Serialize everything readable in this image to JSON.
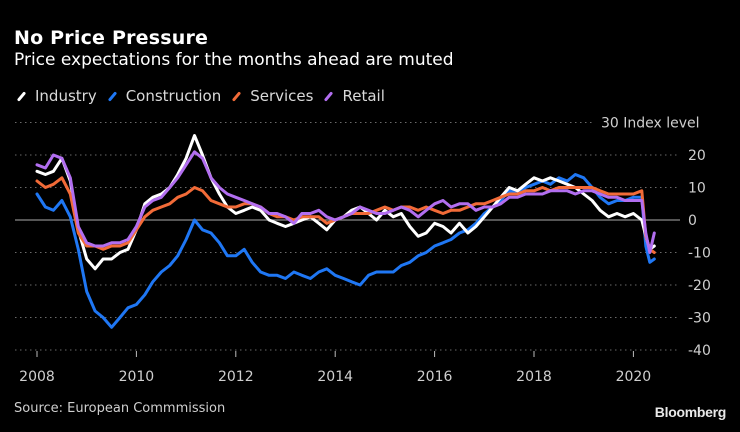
{
  "header": {
    "title": "No Price Pressure",
    "subtitle": "Price expectations for the months ahead are muted"
  },
  "footer": {
    "source": "Source: European Commmission",
    "brand": "Bloomberg"
  },
  "chart_data": {
    "type": "line",
    "title": "No Price Pressure",
    "subtitle": "Price expectations for the months ahead are muted",
    "xlabel": "",
    "ylabel": "Index level",
    "xlim": [
      2007.9,
      2020.55
    ],
    "ylim": [
      -40,
      30
    ],
    "y_ticks": [
      30,
      20,
      10,
      0,
      -10,
      -20,
      -30,
      -40
    ],
    "y_tick_labels": [
      "30 Index level",
      "20",
      "10",
      "0",
      "-10",
      "-20",
      "-30",
      "-40"
    ],
    "x_ticks": [
      2008,
      2010,
      2012,
      2014,
      2016,
      2018,
      2020
    ],
    "x_tick_labels": [
      "2008",
      "2010",
      "2012",
      "2014",
      "2016",
      "2018",
      "2020"
    ],
    "grid": true,
    "legend_position": "top-left",
    "x": [
      2008.0,
      2008.17,
      2008.33,
      2008.5,
      2008.67,
      2008.83,
      2009.0,
      2009.17,
      2009.33,
      2009.5,
      2009.67,
      2009.83,
      2010.0,
      2010.17,
      2010.33,
      2010.5,
      2010.67,
      2010.83,
      2011.0,
      2011.17,
      2011.33,
      2011.5,
      2011.67,
      2011.83,
      2012.0,
      2012.17,
      2012.33,
      2012.5,
      2012.67,
      2012.83,
      2013.0,
      2013.17,
      2013.33,
      2013.5,
      2013.67,
      2013.83,
      2014.0,
      2014.17,
      2014.33,
      2014.5,
      2014.67,
      2014.83,
      2015.0,
      2015.17,
      2015.33,
      2015.5,
      2015.67,
      2015.83,
      2016.0,
      2016.17,
      2016.33,
      2016.5,
      2016.67,
      2016.83,
      2017.0,
      2017.17,
      2017.33,
      2017.5,
      2017.67,
      2017.83,
      2018.0,
      2018.17,
      2018.33,
      2018.5,
      2018.67,
      2018.83,
      2019.0,
      2019.17,
      2019.33,
      2019.5,
      2019.67,
      2019.83,
      2020.0,
      2020.17,
      2020.25,
      2020.33,
      2020.42
    ],
    "series": [
      {
        "name": "Industry",
        "color": "#ffffff",
        "values": [
          15,
          14,
          15,
          19,
          12,
          -3,
          -12,
          -15,
          -12,
          -12,
          -10,
          -9,
          -3,
          5,
          7,
          8,
          10,
          14,
          19,
          26,
          20,
          13,
          8,
          4,
          2,
          3,
          4,
          3,
          0,
          -1,
          -2,
          -1,
          0,
          1,
          -1,
          -3,
          0,
          1,
          3,
          4,
          2,
          0,
          3,
          1,
          2,
          -2,
          -5,
          -4,
          -1,
          -2,
          -4,
          -1,
          -4,
          -2,
          1,
          4,
          7,
          10,
          9,
          11,
          13,
          12,
          13,
          12,
          11,
          10,
          8,
          6,
          3,
          1,
          2,
          1,
          2,
          0,
          -5,
          -9,
          -8
        ]
      },
      {
        "name": "Construction",
        "color": "#1f77f4",
        "values": [
          8,
          4,
          3,
          6,
          1,
          -9,
          -22,
          -28,
          -30,
          -33,
          -30,
          -27,
          -26,
          -23,
          -19,
          -16,
          -14,
          -11,
          -6,
          0,
          -3,
          -4,
          -7,
          -11,
          -11,
          -9,
          -13,
          -16,
          -17,
          -17,
          -18,
          -16,
          -17,
          -18,
          -16,
          -15,
          -17,
          -18,
          -19,
          -20,
          -17,
          -16,
          -16,
          -16,
          -14,
          -13,
          -11,
          -10,
          -8,
          -7,
          -6,
          -4,
          -3,
          -1,
          2,
          4,
          6,
          9,
          8,
          10,
          11,
          12,
          11,
          13,
          12,
          14,
          13,
          10,
          7,
          5,
          6,
          6,
          7,
          7,
          -8,
          -13,
          -12
        ]
      },
      {
        "name": "Services",
        "color": "#f26b38",
        "values": [
          12,
          10,
          11,
          13,
          8,
          -4,
          -8,
          -8,
          -9,
          -8,
          -8,
          -7,
          -3,
          1,
          3,
          4,
          5,
          7,
          8,
          10,
          9,
          6,
          5,
          4,
          4,
          5,
          5,
          4,
          2,
          1,
          1,
          0,
          1,
          1,
          1,
          -1,
          0,
          1,
          2,
          2,
          2,
          3,
          4,
          3,
          4,
          4,
          3,
          4,
          3,
          2,
          3,
          3,
          4,
          5,
          5,
          6,
          7,
          8,
          8,
          9,
          9,
          10,
          9,
          10,
          10,
          10,
          10,
          10,
          9,
          8,
          8,
          8,
          8,
          9,
          -5,
          -9,
          -10
        ]
      },
      {
        "name": "Retail",
        "color": "#b26ef0",
        "values": [
          17,
          16,
          20,
          19,
          13,
          -2,
          -7,
          -8,
          -8,
          -7,
          -7,
          -6,
          -2,
          4,
          6,
          7,
          10,
          13,
          17,
          21,
          19,
          13,
          10,
          8,
          7,
          6,
          5,
          4,
          2,
          2,
          1,
          -1,
          2,
          2,
          3,
          1,
          0,
          1,
          2,
          4,
          3,
          2,
          2,
          3,
          4,
          3,
          1,
          3,
          5,
          6,
          4,
          5,
          5,
          3,
          4,
          4,
          5,
          7,
          7,
          8,
          8,
          8,
          9,
          9,
          9,
          8,
          9,
          9,
          8,
          7,
          7,
          6,
          6,
          6,
          -4,
          -10,
          -4
        ]
      }
    ]
  }
}
